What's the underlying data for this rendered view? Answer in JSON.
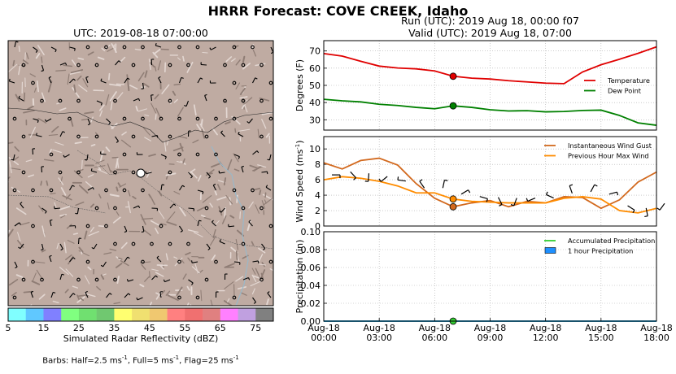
{
  "title": "HRRR Forecast: COVE CREEK, Idaho",
  "map": {
    "title": "UTC: 2019-08-18 07:00:00",
    "colorbar": {
      "label": "Simulated Radar Reflectivity (dBZ)",
      "ticks": [
        "5",
        "15",
        "25",
        "35",
        "45",
        "55",
        "65",
        "75"
      ],
      "colors": [
        "#80ffff",
        "#60c8ff",
        "#8080ff",
        "#80ff80",
        "#70e070",
        "#70c870",
        "#ffff70",
        "#f0e070",
        "#f0c870",
        "#ff8080",
        "#f07070",
        "#e08080",
        "#ff80ff",
        "#c0a0e0",
        "#808080"
      ]
    },
    "barbs_note_prefix": "Barbs: Half=2.5 ms",
    "barbs_note_mid1": ", Full=5 ms",
    "barbs_note_mid2": ", Flag=25 ms",
    "barbs_sup": "-1"
  },
  "run_line1": "Run (UTC): 2019 Aug 18, 00:00 f07",
  "run_line2": "Valid (UTC): 2019 Aug 18, 07:00",
  "chart_data": [
    {
      "type": "line",
      "ylabel": "Degrees (F)",
      "ylim": [
        24,
        76
      ],
      "yticks": [
        30,
        40,
        50,
        60,
        70
      ],
      "grid": true,
      "legend": "right",
      "x": [
        0,
        1,
        2,
        3,
        4,
        5,
        6,
        7,
        8,
        9,
        10,
        11,
        12,
        13,
        14,
        15,
        16,
        17,
        18
      ],
      "series": [
        {
          "name": "Temperature",
          "color": "#e00000",
          "values": [
            68.5,
            67,
            64,
            61.2,
            60.1,
            59.6,
            58.4,
            55.3,
            54.2,
            53.7,
            52.7,
            52,
            51.3,
            51,
            57.8,
            62,
            65.2,
            68.6,
            72.4
          ]
        },
        {
          "name": "Dew Point",
          "color": "#008000",
          "values": [
            41.9,
            41,
            40.4,
            39,
            38.3,
            37.2,
            36.4,
            38.1,
            37.2,
            35.8,
            35.1,
            35.3,
            34.6,
            34.8,
            35.4,
            35.6,
            32.5,
            28.2,
            26.8
          ]
        }
      ],
      "marker": {
        "x": 7,
        "values": [
          55.3,
          38.1
        ]
      }
    },
    {
      "type": "line",
      "ylabel": "Wind Speed (ms",
      "ylabel_sup": "-1",
      "ylabel_end": ")",
      "ylim": [
        0,
        11.6
      ],
      "yticks": [
        0,
        2,
        4,
        6,
        8,
        10
      ],
      "grid": true,
      "legend": "top-right",
      "x": [
        0,
        1,
        2,
        3,
        4,
        5,
        6,
        7,
        8,
        9,
        10,
        11,
        12,
        13,
        14,
        15,
        16,
        17,
        18
      ],
      "series": [
        {
          "name": "Instantaneous Wind Gust",
          "color": "#d2691e",
          "values": [
            8.2,
            7.4,
            8.5,
            8.8,
            7.9,
            5.5,
            3.6,
            2.5,
            3,
            3.3,
            2.5,
            3.2,
            3,
            3.8,
            3.7,
            2.3,
            3.4,
            5.7,
            7
          ]
        },
        {
          "name": "Previous Hour Max Wind",
          "color": "#ff8c00",
          "values": [
            6,
            6.4,
            6.2,
            5.8,
            5.2,
            4.3,
            4.3,
            3.5,
            3.2,
            3.1,
            3,
            3,
            3,
            3.6,
            3.8,
            3.5,
            2,
            1.7,
            2.3
          ]
        }
      ],
      "marker": {
        "x": 7,
        "values": [
          2.5,
          3.5
        ]
      }
    },
    {
      "type": "line",
      "ylabel": "Precipitation (in)",
      "ylim": [
        0,
        0.1
      ],
      "yticks": [
        "0.00",
        "0.02",
        "0.04",
        "0.06",
        "0.08",
        "0.10"
      ],
      "grid": true,
      "legend": "top-right",
      "xtick_labels": [
        [
          "Aug-18",
          "00:00"
        ],
        [
          "Aug-18",
          "03:00"
        ],
        [
          "Aug-18",
          "06:00"
        ],
        [
          "Aug-18",
          "09:00"
        ],
        [
          "Aug-18",
          "12:00"
        ],
        [
          "Aug-18",
          "15:00"
        ],
        [
          "Aug-18",
          "18:00"
        ]
      ],
      "xlim": [
        0,
        18
      ],
      "x": [
        0,
        1,
        2,
        3,
        4,
        5,
        6,
        7,
        8,
        9,
        10,
        11,
        12,
        13,
        14,
        15,
        16,
        17,
        18
      ],
      "series": [
        {
          "name": "Accumulated Precipitation",
          "color": "#32cd32",
          "values": [
            0,
            0,
            0,
            0,
            0,
            0,
            0,
            0,
            0,
            0,
            0,
            0,
            0,
            0,
            0,
            0,
            0,
            0,
            0
          ]
        },
        {
          "name": "1 hour Precipitation",
          "color": "#1e90ff",
          "values": [
            0,
            0,
            0,
            0,
            0,
            0,
            0,
            0,
            0,
            0,
            0,
            0,
            0,
            0,
            0,
            0,
            0,
            0,
            0
          ]
        }
      ],
      "marker": {
        "x": 7,
        "values": [
          0
        ]
      }
    }
  ]
}
